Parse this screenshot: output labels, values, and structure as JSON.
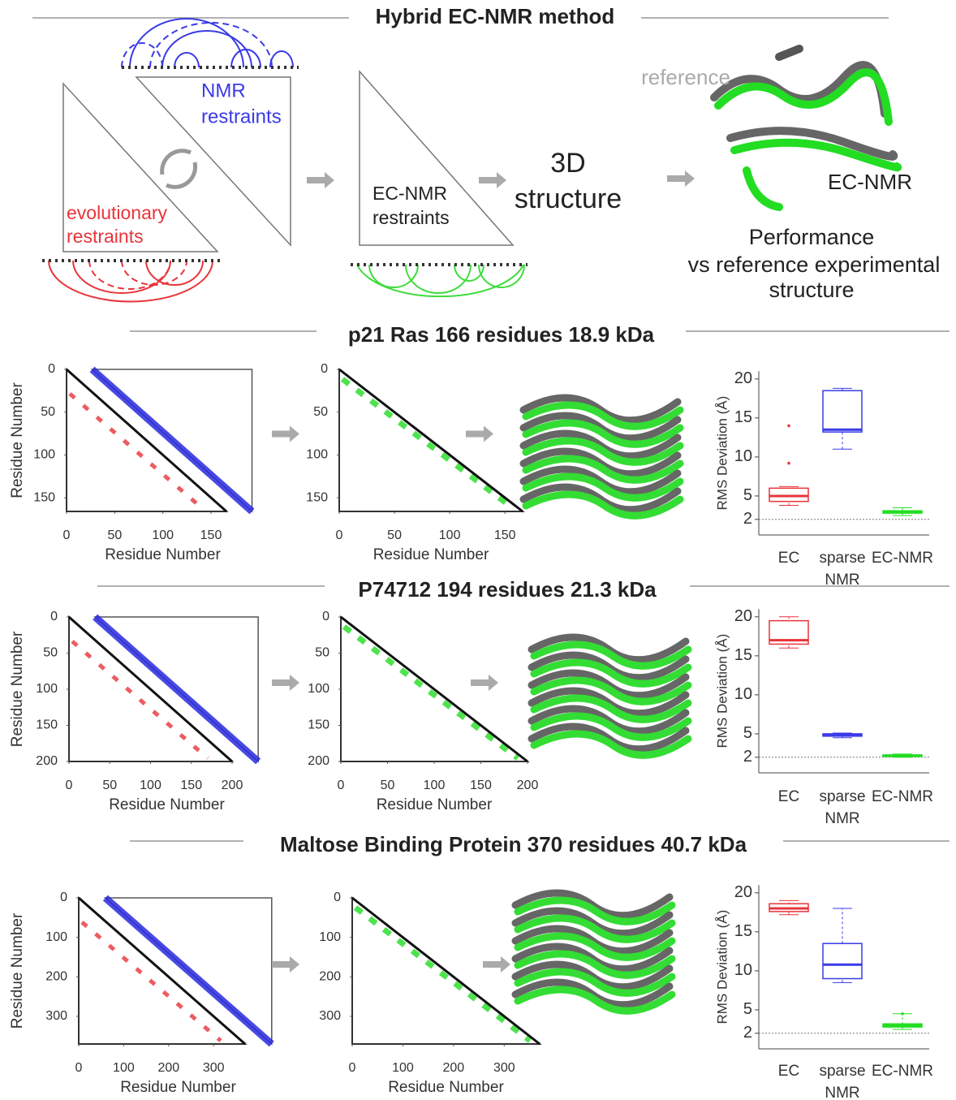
{
  "header": {
    "title": "Hybrid EC-NMR method"
  },
  "diagram": {
    "nmr_restraints": [
      "NMR",
      "restraints"
    ],
    "evolutionary_restraints": [
      "evolutionary",
      "restraints"
    ],
    "ecnmr_restraints": [
      "EC-NMR",
      "restraints"
    ],
    "structure_3d": [
      "3D",
      "structure"
    ],
    "reference": "reference",
    "ecnmr_label": "EC-NMR",
    "performance": [
      "Performance",
      "vs reference experimental",
      "structure"
    ]
  },
  "panels": [
    {
      "title": "p21 Ras  166 residues  18.9 kDa",
      "contact_map": {
        "xlim": [
          0,
          166
        ],
        "ylim": [
          0,
          166
        ],
        "xticks": [
          0,
          50,
          100,
          150
        ],
        "yticks": [
          0,
          50,
          100,
          150
        ],
        "xlabel": "Residue Number",
        "ylabel": "Residue Number"
      },
      "ecnmr_map": {
        "xlim": [
          0,
          166
        ],
        "ylim": [
          0,
          166
        ],
        "xticks": [
          0,
          50,
          100,
          150
        ],
        "yticks": [
          0,
          50,
          100,
          150
        ],
        "xlabel": "Residue  Number"
      },
      "rmsd": {
        "type": "box",
        "ylabel": "RMS Deviation (Å)",
        "ylim": [
          0,
          21
        ],
        "yticks": [
          2,
          5,
          10,
          15,
          20
        ],
        "reference_line": 2,
        "categories": [
          "EC",
          "sparse NMR",
          "EC-NMR"
        ],
        "boxes": [
          {
            "color": "#e8343a",
            "min": 3.8,
            "q1": 4.3,
            "median": 5.0,
            "q3": 6.0,
            "max": 6.2,
            "outliers": [
              9.2,
              14
            ]
          },
          {
            "color": "#3a3ae8",
            "min": 11,
            "q1": 13.2,
            "median": 13.5,
            "q3": 18.5,
            "max": 18.8,
            "outliers": []
          },
          {
            "color": "#22dd22",
            "min": 2.5,
            "q1": 2.8,
            "median": 3.0,
            "q3": 3.1,
            "max": 3.5,
            "outliers": []
          }
        ]
      }
    },
    {
      "title": "P74712  194 residues  21.3 kDa",
      "contact_map": {
        "xlim": [
          0,
          200
        ],
        "ylim": [
          0,
          200
        ],
        "xticks": [
          0,
          50,
          100,
          150,
          200
        ],
        "yticks": [
          0,
          50,
          100,
          150,
          200
        ],
        "xlabel": "Residue Number",
        "ylabel": "Residue Number"
      },
      "ecnmr_map": {
        "xlim": [
          0,
          200
        ],
        "ylim": [
          0,
          200
        ],
        "xticks": [
          0,
          50,
          100,
          150,
          200
        ],
        "yticks": [
          0,
          50,
          100,
          150,
          200
        ],
        "xlabel": "Residue Number"
      },
      "rmsd": {
        "type": "box",
        "ylabel": "RMS Deviation (Å)",
        "ylim": [
          0,
          21
        ],
        "yticks": [
          2,
          5,
          10,
          15,
          20
        ],
        "reference_line": 2,
        "categories": [
          "EC",
          "sparse NMR",
          "EC-NMR"
        ],
        "boxes": [
          {
            "color": "#e8343a",
            "min": 16,
            "q1": 16.5,
            "median": 17,
            "q3": 19.5,
            "max": 20,
            "outliers": []
          },
          {
            "color": "#3a3ae8",
            "min": 4.5,
            "q1": 4.7,
            "median": 4.9,
            "q3": 5,
            "max": 5.1,
            "outliers": []
          },
          {
            "color": "#22dd22",
            "min": 2,
            "q1": 2.1,
            "median": 2.2,
            "q3": 2.3,
            "max": 2.4,
            "outliers": []
          }
        ]
      }
    },
    {
      "title": "Maltose Binding Protein 370 residues  40.7 kDa",
      "contact_map": {
        "xlim": [
          0,
          370
        ],
        "ylim": [
          0,
          370
        ],
        "xticks": [
          0,
          100,
          200,
          300
        ],
        "yticks": [
          0,
          100,
          200,
          300
        ],
        "xlabel": "Residue Number",
        "ylabel": "Residue Number"
      },
      "ecnmr_map": {
        "xlim": [
          0,
          370
        ],
        "ylim": [
          0,
          370
        ],
        "xticks": [
          0,
          100,
          200,
          300
        ],
        "yticks": [
          0,
          100,
          200,
          300
        ],
        "xlabel": "Residue Number"
      },
      "rmsd": {
        "type": "box",
        "ylabel": "RMS Deviation (Å)",
        "ylim": [
          0,
          21
        ],
        "yticks": [
          2,
          5,
          10,
          15,
          20
        ],
        "reference_line": 2,
        "categories": [
          "EC",
          "sparse NMR",
          "EC-NMR"
        ],
        "boxes": [
          {
            "color": "#e8343a",
            "min": 17.2,
            "q1": 17.6,
            "median": 18,
            "q3": 18.6,
            "max": 19,
            "outliers": []
          },
          {
            "color": "#3a3ae8",
            "min": 8.5,
            "q1": 9,
            "median": 10.8,
            "q3": 13.5,
            "max": 18,
            "outliers": []
          },
          {
            "color": "#22dd22",
            "min": 2.5,
            "q1": 2.8,
            "median": 3,
            "q3": 3.2,
            "max": 4.5,
            "outliers": [
              4.5
            ]
          }
        ]
      }
    }
  ]
}
